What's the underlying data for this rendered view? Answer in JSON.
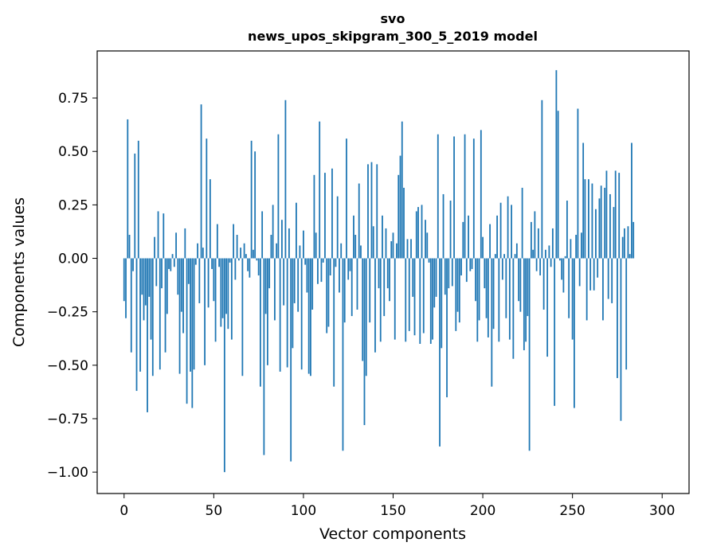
{
  "chart_data": {
    "type": "bar",
    "title": "svo",
    "subtitle": "news_upos_skipgram_300_5_2019 model",
    "xlabel": "Vector components",
    "ylabel": "Components values",
    "xlim": [
      -15,
      315
    ],
    "ylim": [
      -1.1,
      0.97
    ],
    "xticks": [
      "0",
      "50",
      "100",
      "150",
      "200",
      "250",
      "300"
    ],
    "yticks": [
      "0.75",
      "0.50",
      "0.25",
      "0.00",
      "−0.25",
      "−0.50",
      "−0.75",
      "−1.00"
    ],
    "bar_color": "#1f77b4",
    "values": [
      -0.2,
      -0.28,
      0.65,
      0.11,
      -0.44,
      -0.06,
      0.49,
      -0.62,
      0.55,
      -0.53,
      -0.17,
      -0.29,
      -0.22,
      -0.72,
      -0.18,
      -0.38,
      -0.55,
      0.1,
      -0.13,
      0.22,
      -0.52,
      -0.14,
      0.21,
      -0.44,
      -0.26,
      -0.05,
      -0.06,
      0.02,
      -0.04,
      0.12,
      -0.17,
      -0.54,
      -0.25,
      -0.35,
      0.14,
      -0.68,
      -0.12,
      -0.53,
      -0.7,
      -0.52,
      -0.03,
      0.07,
      -0.21,
      0.72,
      0.05,
      -0.5,
      0.56,
      -0.23,
      0.37,
      -0.05,
      -0.2,
      -0.39,
      0.16,
      -0.04,
      -0.32,
      -0.28,
      -1.0,
      -0.26,
      -0.33,
      -0.02,
      -0.38,
      0.16,
      -0.1,
      0.11,
      -0.01,
      0.05,
      -0.55,
      0.07,
      0.02,
      -0.06,
      -0.09,
      0.55,
      0.04,
      0.5,
      -0.01,
      -0.08,
      -0.6,
      0.22,
      -0.92,
      -0.26,
      -0.5,
      -0.14,
      0.11,
      0.25,
      -0.29,
      0.07,
      0.58,
      -0.53,
      0.18,
      -0.22,
      0.74,
      -0.51,
      0.14,
      -0.95,
      -0.42,
      -0.21,
      0.26,
      -0.25,
      0.06,
      -0.52,
      0.13,
      -0.03,
      -0.16,
      -0.54,
      -0.55,
      -0.24,
      0.39,
      0.12,
      -0.12,
      0.64,
      -0.11,
      -0.02,
      0.4,
      -0.35,
      -0.32,
      -0.08,
      0.42,
      -0.6,
      -0.04,
      0.29,
      -0.16,
      0.07,
      -0.9,
      -0.3,
      0.56,
      -0.1,
      -0.06,
      -0.27,
      0.2,
      0.11,
      -0.24,
      0.35,
      0.06,
      -0.48,
      -0.78,
      -0.55,
      0.44,
      -0.3,
      0.45,
      0.15,
      -0.44,
      0.44,
      -0.14,
      -0.39,
      0.2,
      -0.27,
      0.14,
      -0.14,
      -0.2,
      0.08,
      0.12,
      -0.38,
      0.07,
      0.39,
      0.48,
      0.64,
      0.33,
      -0.39,
      0.09,
      -0.34,
      0.09,
      -0.18,
      -0.36,
      0.22,
      0.24,
      -0.4,
      0.25,
      -0.35,
      0.18,
      0.12,
      -0.02,
      -0.4,
      -0.38,
      -0.23,
      -0.18,
      0.58,
      -0.88,
      -0.42,
      0.3,
      -0.17,
      -0.65,
      -0.14,
      0.27,
      -0.13,
      0.57,
      -0.34,
      -0.25,
      -0.3,
      -0.08,
      0.17,
      0.58,
      -0.11,
      0.2,
      -0.06,
      -0.05,
      0.56,
      -0.2,
      -0.39,
      -0.29,
      0.6,
      0.1,
      -0.14,
      -0.28,
      -0.37,
      0.16,
      -0.6,
      -0.33,
      0.02,
      0.2,
      -0.39,
      0.26,
      -0.1,
      0.02,
      -0.28,
      0.29,
      -0.38,
      0.25,
      -0.47,
      0.02,
      0.07,
      -0.2,
      -0.25,
      0.33,
      -0.43,
      -0.39,
      -0.27,
      -0.9,
      0.17,
      0.04,
      0.22,
      -0.06,
      0.14,
      -0.08,
      0.74,
      -0.24,
      0.04,
      -0.46,
      0.06,
      -0.04,
      0.14,
      -0.69,
      0.88,
      0.69,
      -0.01,
      -0.1,
      -0.16,
      0.01,
      0.27,
      -0.28,
      0.09,
      -0.38,
      -0.7,
      0.11,
      0.7,
      -0.13,
      0.12,
      0.54,
      0.37,
      -0.29,
      0.37,
      -0.15,
      0.35,
      -0.15,
      0.23,
      -0.09,
      0.28,
      0.34,
      -0.29,
      0.33,
      0.41,
      -0.19,
      0.3,
      -0.21,
      0.24,
      0.41,
      -0.56,
      0.4,
      -0.76,
      0.1,
      0.14,
      -0.52,
      0.15,
      0.02,
      0.54,
      0.17
    ]
  }
}
